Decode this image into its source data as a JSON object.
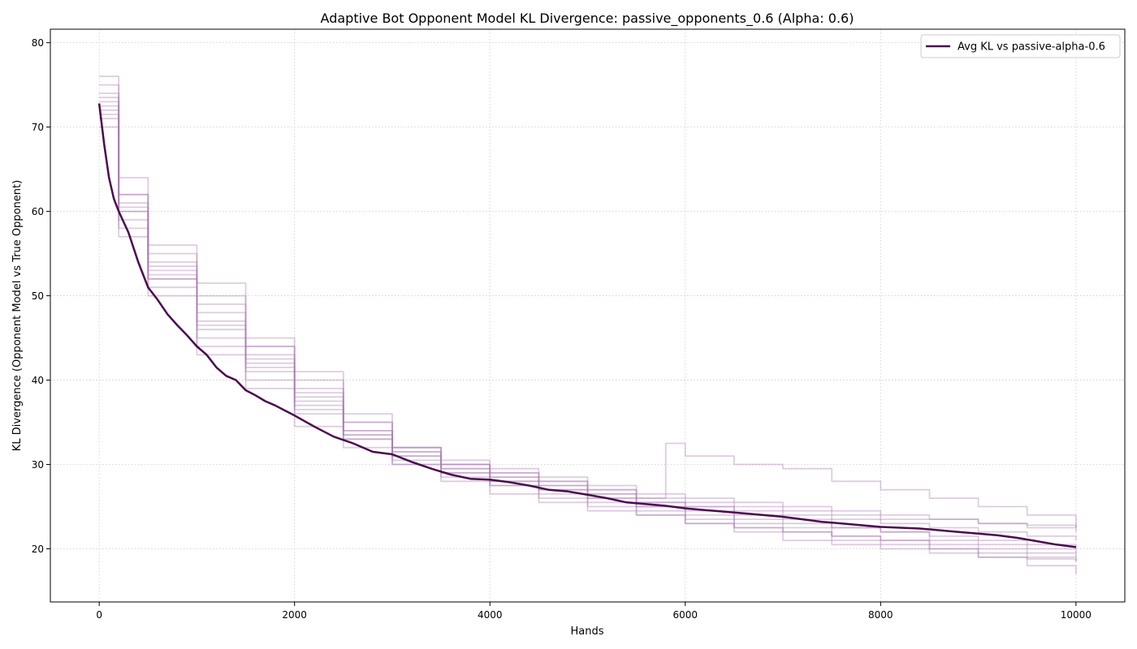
{
  "chart_data": {
    "type": "line",
    "title": "Adaptive Bot Opponent Model KL Divergence: passive_opponents_0.6 (Alpha: 0.6)",
    "xlabel": "Hands",
    "ylabel": "KL Divergence (Opponent Model vs True Opponent)",
    "xlim": [
      -500,
      10500
    ],
    "ylim": [
      13.7,
      81.6
    ],
    "xticks": [
      0,
      2000,
      4000,
      6000,
      8000,
      10000
    ],
    "yticks": [
      20,
      30,
      40,
      50,
      60,
      70,
      80
    ],
    "grid": true,
    "grid_style": "dotted",
    "legend_position": "top-right",
    "colors": {
      "avg": "#4b0a4e",
      "run": "#a878b0"
    },
    "series": [
      {
        "name": "Avg KL vs passive-alpha-0.6",
        "x": [
          0,
          50,
          100,
          150,
          200,
          300,
          400,
          500,
          600,
          700,
          800,
          900,
          1000,
          1100,
          1200,
          1300,
          1400,
          1500,
          1600,
          1700,
          1800,
          2000,
          2200,
          2400,
          2600,
          2800,
          3000,
          3200,
          3400,
          3600,
          3800,
          4000,
          4200,
          4400,
          4600,
          4800,
          5000,
          5200,
          5400,
          5600,
          5800,
          6000,
          6200,
          6400,
          6600,
          6800,
          7000,
          7200,
          7400,
          7600,
          7800,
          8000,
          8200,
          8400,
          8600,
          8800,
          9000,
          9200,
          9400,
          9600,
          9800,
          10000
        ],
        "values": [
          72.8,
          68.0,
          64.0,
          61.5,
          60.0,
          57.5,
          54.0,
          51.0,
          49.5,
          47.8,
          46.5,
          45.3,
          44.0,
          43.0,
          41.5,
          40.5,
          40.0,
          38.8,
          38.2,
          37.5,
          37.0,
          35.8,
          34.5,
          33.3,
          32.5,
          31.5,
          31.2,
          30.3,
          29.5,
          28.8,
          28.3,
          28.2,
          27.9,
          27.5,
          27.0,
          26.8,
          26.4,
          26.0,
          25.5,
          25.3,
          25.1,
          24.8,
          24.6,
          24.4,
          24.2,
          24.0,
          23.8,
          23.5,
          23.2,
          23.0,
          22.8,
          22.6,
          22.5,
          22.4,
          22.2,
          22.0,
          21.8,
          21.6,
          21.3,
          20.9,
          20.5,
          20.2
        ]
      },
      {
        "x": [
          0,
          200,
          500,
          1000,
          1500,
          2000,
          2500,
          3000,
          3500,
          4000,
          4500,
          5000,
          5500,
          6000,
          6500,
          7000,
          7500,
          8000,
          8500,
          9000,
          9500,
          10000
        ],
        "values": [
          74.0,
          60.0,
          52.0,
          46.0,
          41.0,
          37.5,
          34.0,
          31.5,
          29.5,
          28.5,
          27.5,
          26.5,
          25.5,
          25.0,
          24.0,
          23.5,
          22.5,
          22.0,
          21.5,
          21.0,
          20.5,
          20.0
        ]
      },
      {
        "x": [
          0,
          200,
          500,
          1000,
          1500,
          2000,
          2500,
          3000,
          3500,
          4000,
          4500,
          5000,
          5500,
          6000,
          6500,
          7000,
          7500,
          8000,
          8500,
          9000,
          9500,
          10000
        ],
        "values": [
          72.0,
          62.0,
          55.0,
          49.0,
          44.0,
          41.0,
          35.0,
          32.0,
          30.0,
          29.0,
          28.0,
          27.0,
          26.0,
          25.5,
          25.0,
          24.5,
          24.0,
          23.5,
          23.5,
          23.0,
          22.8,
          22.5
        ]
      },
      {
        "x": [
          0,
          200,
          500,
          1000,
          1500,
          2000,
          2500,
          3000,
          3500,
          4000,
          4500,
          5000,
          5500,
          6000,
          6500,
          7000,
          7500,
          8000,
          8500,
          9000,
          9500,
          10000
        ],
        "values": [
          70.0,
          58.0,
          50.0,
          43.0,
          39.0,
          34.5,
          32.0,
          30.0,
          28.5,
          27.5,
          26.5,
          25.5,
          24.5,
          23.5,
          22.5,
          22.0,
          21.0,
          20.5,
          20.0,
          19.5,
          19.0,
          18.5
        ]
      },
      {
        "x": [
          0,
          200,
          500,
          1000,
          1500,
          2000,
          2500,
          3000,
          3500,
          4000,
          4500,
          5000,
          5500,
          6000,
          6500,
          7000,
          7500,
          8000,
          8500,
          9000,
          9500,
          10000
        ],
        "values": [
          73.0,
          61.0,
          54.0,
          48.0,
          42.0,
          38.0,
          34.0,
          31.0,
          29.5,
          28.0,
          27.0,
          26.0,
          25.0,
          24.5,
          23.5,
          23.0,
          22.5,
          22.0,
          21.0,
          20.5,
          20.0,
          19.5
        ]
      },
      {
        "x": [
          0,
          200,
          500,
          1000,
          1500,
          2000,
          2500,
          3000,
          3500,
          4000,
          4500,
          5000,
          5500,
          5800,
          6000,
          6500,
          7000,
          7500,
          8000,
          8500,
          9000,
          9500,
          10000
        ],
        "values": [
          71.0,
          59.0,
          52.0,
          47.0,
          43.0,
          39.0,
          36.0,
          32.0,
          30.0,
          29.0,
          28.0,
          27.0,
          26.0,
          32.5,
          31.0,
          30.0,
          29.5,
          28.0,
          27.0,
          26.0,
          25.0,
          24.0,
          22.5
        ]
      },
      {
        "x": [
          0,
          200,
          500,
          1000,
          1500,
          2000,
          2500,
          3000,
          3500,
          4000,
          4500,
          5000,
          5500,
          6000,
          6500,
          7000,
          7500,
          8000,
          8500,
          9000,
          9500,
          10000
        ],
        "values": [
          75.0,
          64.0,
          56.0,
          50.0,
          44.0,
          38.5,
          33.0,
          30.5,
          29.0,
          27.5,
          26.0,
          25.0,
          24.0,
          23.0,
          22.5,
          22.0,
          21.5,
          21.0,
          20.5,
          20.0,
          19.5,
          19.0
        ]
      },
      {
        "x": [
          0,
          200,
          500,
          1000,
          1500,
          2000,
          2500,
          3000,
          3500,
          4000,
          4500,
          5000,
          5500,
          6000,
          6500,
          7000,
          7500,
          8000,
          8500,
          9000,
          9500,
          10000
        ],
        "values": [
          73.5,
          60.5,
          52.5,
          45.0,
          40.0,
          36.0,
          33.0,
          31.0,
          29.0,
          28.0,
          27.5,
          26.5,
          25.5,
          25.0,
          24.5,
          24.0,
          23.5,
          23.0,
          22.5,
          22.0,
          21.5,
          21.0
        ]
      },
      {
        "x": [
          0,
          200,
          500,
          1000,
          1500,
          2000,
          2500,
          3000,
          3500,
          4000,
          4500,
          5000,
          5500,
          6000,
          6500,
          7000,
          7500,
          8000,
          8500,
          9000,
          9500,
          10000
        ],
        "values": [
          72.5,
          57.0,
          51.0,
          44.0,
          41.5,
          37.0,
          33.5,
          31.5,
          30.0,
          28.5,
          27.0,
          26.0,
          25.0,
          24.0,
          23.0,
          22.5,
          21.5,
          21.0,
          20.0,
          19.0,
          18.0,
          17.0
        ]
      },
      {
        "x": [
          0,
          200,
          500,
          1000,
          1500,
          2000,
          2500,
          3000,
          3500,
          4000,
          4500,
          5000,
          5500,
          6000,
          6500,
          7000,
          7500,
          8000,
          8500,
          9000,
          9500,
          10000
        ],
        "values": [
          76.0,
          62.0,
          53.0,
          51.5,
          45.0,
          40.0,
          35.0,
          32.0,
          30.5,
          29.5,
          28.5,
          27.5,
          26.5,
          26.0,
          25.5,
          25.0,
          24.5,
          24.0,
          23.5,
          23.0,
          22.5,
          22.0
        ]
      },
      {
        "x": [
          0,
          200,
          500,
          1000,
          1500,
          2000,
          2500,
          3000,
          3500,
          4000,
          4500,
          5000,
          5500,
          6000,
          6500,
          7000,
          7500,
          8000,
          8500,
          9000,
          9500,
          10000
        ],
        "values": [
          71.5,
          60.0,
          53.5,
          46.5,
          42.5,
          36.5,
          33.5,
          30.0,
          28.0,
          26.5,
          25.5,
          24.5,
          24.0,
          23.0,
          22.0,
          21.0,
          20.5,
          20.0,
          19.5,
          19.0,
          18.8,
          18.5
        ]
      }
    ]
  }
}
